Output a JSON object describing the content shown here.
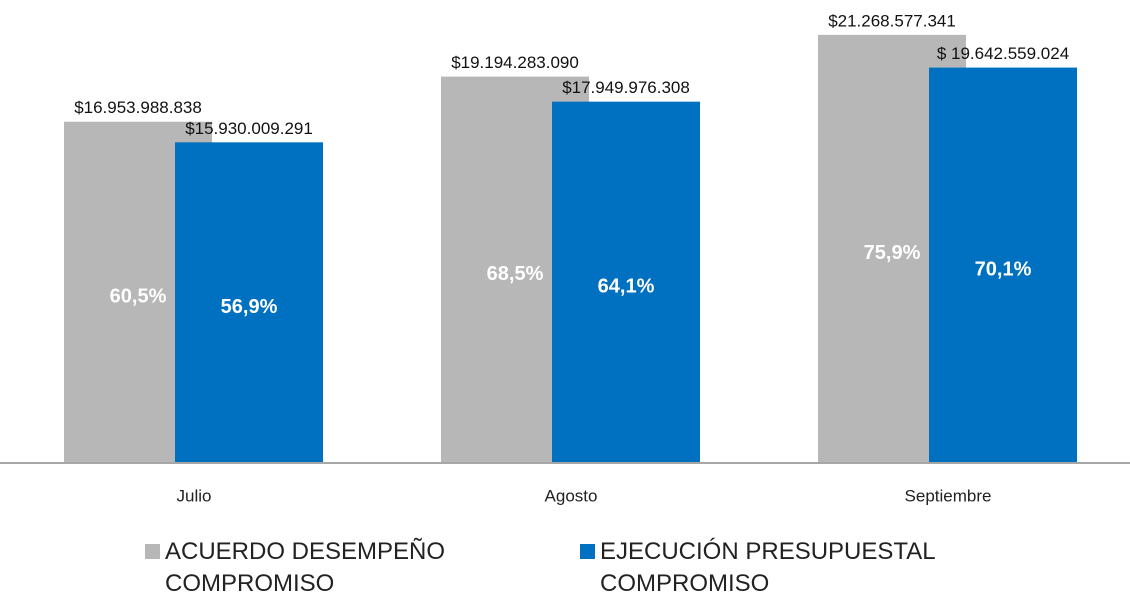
{
  "chart_data": {
    "type": "bar",
    "categories": [
      "Julio",
      "Agosto",
      "Septiembre"
    ],
    "series": [
      {
        "name": "ACUERDO DESEMPEÑO COMPROMISO",
        "color": "#b7b7b7",
        "values": [
          16953988838,
          19194283090,
          21268577341
        ],
        "value_labels": [
          "$16.953.988.838",
          "$19.194.283.090",
          "$21.268.577.341"
        ],
        "percentages": [
          60.5,
          68.5,
          75.9
        ],
        "percentage_labels": [
          "60,5%",
          "68,5%",
          "75,9%"
        ]
      },
      {
        "name": "EJECUCIÓN PRESUPUESTAL COMPROMISO",
        "color": "#0070c0",
        "values": [
          15930009291,
          17949976308,
          19642559024
        ],
        "value_labels": [
          "$15.930.009.291",
          "$17.949.976.308",
          "$ 19.642.559.024"
        ],
        "percentages": [
          56.9,
          64.1,
          70.1
        ],
        "percentage_labels": [
          "56,9%",
          "64,1%",
          "70,1%"
        ]
      }
    ],
    "ylim": [
      0,
      23000000000
    ]
  }
}
